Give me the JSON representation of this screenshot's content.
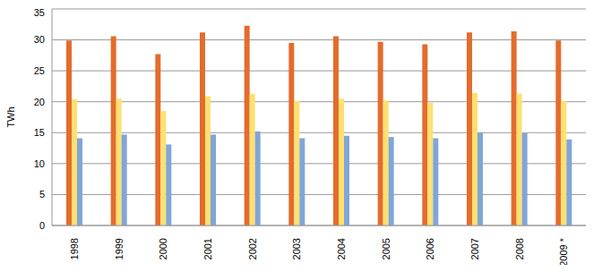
{
  "chart_data": {
    "type": "bar",
    "y_label": "TWh",
    "categories": [
      "1998",
      "1999",
      "2000",
      "2001",
      "2002",
      "2003",
      "2004",
      "2005",
      "2006",
      "2007",
      "2008",
      "2009 *"
    ],
    "series": [
      {
        "color": "#e46c2c",
        "values": [
          29.9,
          30.6,
          27.7,
          31.2,
          32.3,
          29.5,
          30.6,
          29.7,
          29.3,
          31.2,
          31.4,
          29.9
        ]
      },
      {
        "color": "#ffe070",
        "values": [
          20.4,
          20.5,
          18.5,
          20.9,
          21.3,
          20.1,
          20.5,
          20.2,
          19.8,
          21.4,
          21.3,
          20.1
        ]
      },
      {
        "color": "#7fa6d6",
        "values": [
          14.1,
          14.7,
          13.1,
          14.7,
          15.2,
          14.1,
          14.5,
          14.3,
          14.1,
          15.0,
          14.9,
          13.9
        ]
      }
    ],
    "ylim": [
      0,
      35
    ],
    "yticks": [
      0,
      5,
      10,
      15,
      20,
      25,
      30,
      35
    ],
    "grid": true
  }
}
